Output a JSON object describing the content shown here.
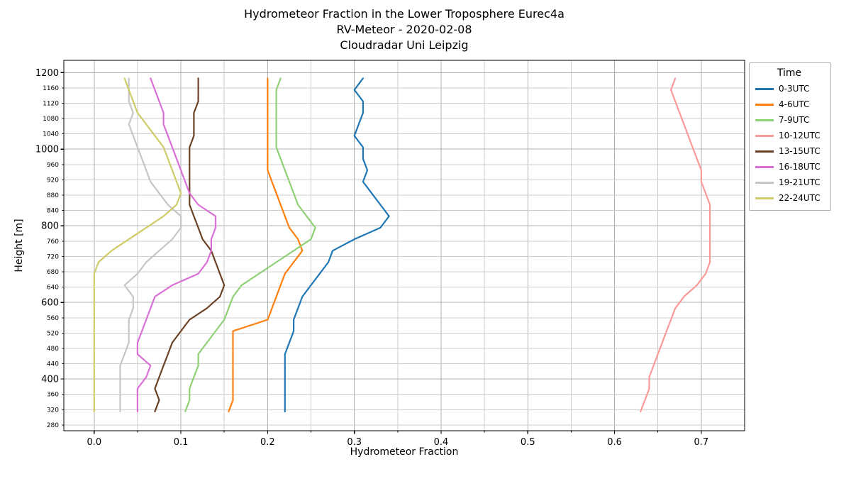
{
  "chart_data": {
    "type": "line",
    "title_lines": [
      "Hydrometeor Fraction in the Lower Troposphere Eurec4a",
      "RV-Meteor - 2020-02-08",
      "Cloudradar Uni Leipzig"
    ],
    "xlabel": "Hydrometeor Fraction",
    "ylabel": "Height [m]",
    "legend_title": "Time",
    "legend_position": "outside-top-right",
    "grid": true,
    "xlim": [
      -0.035,
      0.75
    ],
    "ylim": [
      265,
      1232
    ],
    "x_ticks": [
      0.0,
      0.1,
      0.2,
      0.3,
      0.4,
      0.5,
      0.6,
      0.7
    ],
    "x_minor_step": 0.05,
    "y_ticks": [
      280,
      320,
      360,
      400,
      440,
      480,
      520,
      560,
      600,
      640,
      680,
      720,
      760,
      800,
      840,
      880,
      920,
      960,
      1000,
      1040,
      1080,
      1120,
      1160,
      1200
    ],
    "y_major_ticks": [
      400,
      600,
      800,
      1000,
      1200
    ],
    "grid_major_color": "#b0b0b0",
    "grid_minor_color": "#cccccc",
    "heights": [
      315,
      345,
      375,
      405,
      435,
      465,
      495,
      525,
      555,
      585,
      615,
      645,
      675,
      705,
      735,
      765,
      795,
      825,
      855,
      885,
      915,
      945,
      975,
      1005,
      1035,
      1065,
      1095,
      1125,
      1155,
      1185
    ],
    "series": [
      {
        "name": "0-3UTC",
        "color": "#1f77b4",
        "values": [
          0.22,
          0.22,
          0.22,
          0.22,
          0.22,
          0.22,
          0.225,
          0.23,
          0.23,
          0.235,
          0.24,
          0.25,
          0.26,
          0.27,
          0.275,
          0.3,
          0.33,
          0.34,
          0.33,
          0.32,
          0.31,
          0.315,
          0.31,
          0.31,
          0.3,
          0.305,
          0.31,
          0.31,
          0.3,
          0.31
        ]
      },
      {
        "name": "4-6UTC",
        "color": "#ff7f0e",
        "values": [
          0.155,
          0.16,
          0.16,
          0.16,
          0.16,
          0.16,
          0.16,
          0.16,
          0.2,
          0.205,
          0.21,
          0.215,
          0.22,
          0.23,
          0.24,
          0.235,
          0.225,
          0.22,
          0.215,
          0.21,
          0.205,
          0.2,
          0.2,
          0.2,
          0.2,
          0.2,
          0.2,
          0.2,
          0.2,
          0.2
        ]
      },
      {
        "name": "7-9UTC",
        "color": "#8fd175",
        "values": [
          0.105,
          0.11,
          0.11,
          0.115,
          0.12,
          0.12,
          0.13,
          0.14,
          0.15,
          0.155,
          0.16,
          0.17,
          0.19,
          0.21,
          0.23,
          0.25,
          0.255,
          0.245,
          0.235,
          0.23,
          0.225,
          0.22,
          0.215,
          0.21,
          0.21,
          0.21,
          0.21,
          0.21,
          0.21,
          0.215
        ]
      },
      {
        "name": "10-12UTC",
        "color": "#fc9a98",
        "values": [
          0.63,
          0.635,
          0.64,
          0.64,
          0.645,
          0.65,
          0.655,
          0.66,
          0.665,
          0.67,
          0.68,
          0.695,
          0.705,
          0.71,
          0.71,
          0.71,
          0.71,
          0.71,
          0.71,
          0.705,
          0.7,
          0.7,
          0.695,
          0.69,
          0.685,
          0.68,
          0.675,
          0.67,
          0.665,
          0.67
        ]
      },
      {
        "name": "13-15UTC",
        "color": "#6b4226",
        "values": [
          0.07,
          0.075,
          0.07,
          0.075,
          0.08,
          0.085,
          0.09,
          0.1,
          0.11,
          0.13,
          0.145,
          0.15,
          0.145,
          0.14,
          0.135,
          0.125,
          0.12,
          0.115,
          0.11,
          0.11,
          0.11,
          0.11,
          0.11,
          0.11,
          0.115,
          0.115,
          0.115,
          0.12,
          0.12,
          0.12
        ]
      },
      {
        "name": "16-18UTC",
        "color": "#da70d6",
        "values": [
          0.05,
          0.05,
          0.05,
          0.06,
          0.065,
          0.05,
          0.05,
          0.055,
          0.06,
          0.065,
          0.07,
          0.09,
          0.12,
          0.13,
          0.135,
          0.135,
          0.14,
          0.14,
          0.12,
          0.11,
          0.105,
          0.1,
          0.095,
          0.09,
          0.085,
          0.08,
          0.08,
          0.075,
          0.07,
          0.065
        ]
      },
      {
        "name": "19-21UTC",
        "color": "#c6c6c6",
        "values": [
          0.03,
          0.03,
          0.03,
          0.03,
          0.03,
          0.035,
          0.04,
          0.04,
          0.04,
          0.045,
          0.045,
          0.035,
          0.05,
          0.06,
          0.075,
          0.09,
          0.1,
          0.1,
          0.085,
          0.075,
          0.065,
          0.06,
          0.055,
          0.05,
          0.045,
          0.04,
          0.045,
          0.04,
          0.04,
          0.04
        ]
      },
      {
        "name": "22-24UTC",
        "color": "#cfcc67",
        "values": [
          0.0,
          0.0,
          0.0,
          0.0,
          0.0,
          0.0,
          0.0,
          0.0,
          0.0,
          0.0,
          0.0,
          0.0,
          0.0,
          0.005,
          0.02,
          0.04,
          0.06,
          0.08,
          0.095,
          0.1,
          0.095,
          0.09,
          0.085,
          0.08,
          0.07,
          0.06,
          0.05,
          0.045,
          0.04,
          0.035
        ]
      }
    ]
  }
}
